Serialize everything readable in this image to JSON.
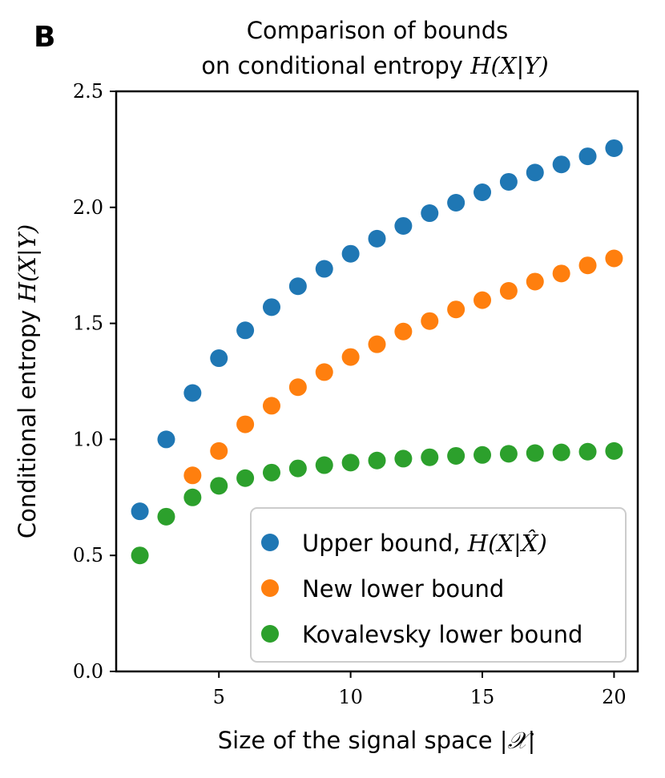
{
  "panel_label": "B",
  "chart_data": {
    "type": "scatter",
    "title_line1": "Comparison of bounds",
    "title_line2_prefix": "on conditional entropy ",
    "title_line2_math": "H(X|Y)",
    "xlabel_prefix": "Size of the signal space ",
    "xlabel_math": "|𝒳|",
    "ylabel_prefix": "Conditional entropy ",
    "ylabel_math": "H(X|Y)",
    "xlim": [
      1.1,
      20.9
    ],
    "ylim": [
      0.0,
      2.5
    ],
    "xticks": [
      5,
      10,
      15,
      20
    ],
    "xtick_labels": [
      "5",
      "10",
      "15",
      "20"
    ],
    "yticks": [
      0.0,
      0.5,
      1.0,
      1.5,
      2.0,
      2.5
    ],
    "ytick_labels": [
      "0.0",
      "0.5",
      "1.0",
      "1.5",
      "2.0",
      "2.5"
    ],
    "legend_position": "lower-right",
    "series": [
      {
        "name": "Upper bound, ",
        "name_math": "H(X|X̂)",
        "color": "#1f77b4",
        "x": [
          2,
          3,
          4,
          5,
          6,
          7,
          8,
          9,
          10,
          11,
          12,
          13,
          14,
          15,
          16,
          17,
          18,
          19,
          20
        ],
        "y": [
          0.69,
          1.0,
          1.2,
          1.35,
          1.47,
          1.57,
          1.66,
          1.735,
          1.8,
          1.865,
          1.92,
          1.975,
          2.02,
          2.065,
          2.11,
          2.15,
          2.185,
          2.22,
          2.255
        ]
      },
      {
        "name": "New lower bound",
        "name_math": "",
        "color": "#ff7f0e",
        "x": [
          4,
          5,
          6,
          7,
          8,
          9,
          10,
          11,
          12,
          13,
          14,
          15,
          16,
          17,
          18,
          19,
          20
        ],
        "y": [
          0.845,
          0.95,
          1.065,
          1.145,
          1.225,
          1.29,
          1.355,
          1.41,
          1.465,
          1.51,
          1.56,
          1.6,
          1.64,
          1.68,
          1.715,
          1.75,
          1.78
        ]
      },
      {
        "name": "Kovalevsky lower bound",
        "name_math": "",
        "color": "#2ca02c",
        "x": [
          2,
          3,
          4,
          5,
          6,
          7,
          8,
          9,
          10,
          11,
          12,
          13,
          14,
          15,
          16,
          17,
          18,
          19,
          20
        ],
        "y": [
          0.5,
          0.667,
          0.75,
          0.8,
          0.833,
          0.857,
          0.875,
          0.889,
          0.9,
          0.909,
          0.917,
          0.923,
          0.929,
          0.933,
          0.938,
          0.941,
          0.944,
          0.947,
          0.95
        ]
      }
    ]
  }
}
